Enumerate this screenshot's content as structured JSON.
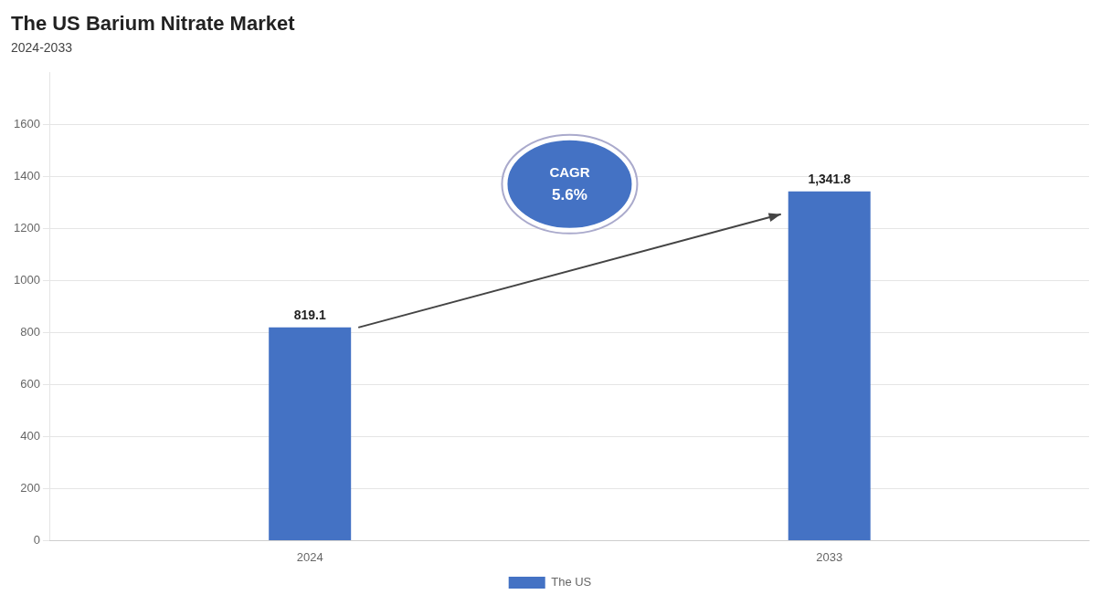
{
  "chart_data": {
    "type": "bar",
    "title": "The US Barium Nitrate Market",
    "subtitle": "2024-2033",
    "categories": [
      "2024",
      "2033"
    ],
    "series": [
      {
        "name": "The US",
        "color": "#4472C4",
        "values": [
          819.1,
          1341.8
        ],
        "value_labels": [
          "819.1",
          "1,341.8"
        ]
      }
    ],
    "ylim": [
      0,
      1800
    ],
    "yticks": [
      0,
      200,
      400,
      600,
      800,
      1000,
      1200,
      1400,
      1600
    ],
    "grid": true,
    "legend": "bottom",
    "data_labels": true,
    "annotations": [
      "CAGR",
      "5.6%"
    ]
  }
}
